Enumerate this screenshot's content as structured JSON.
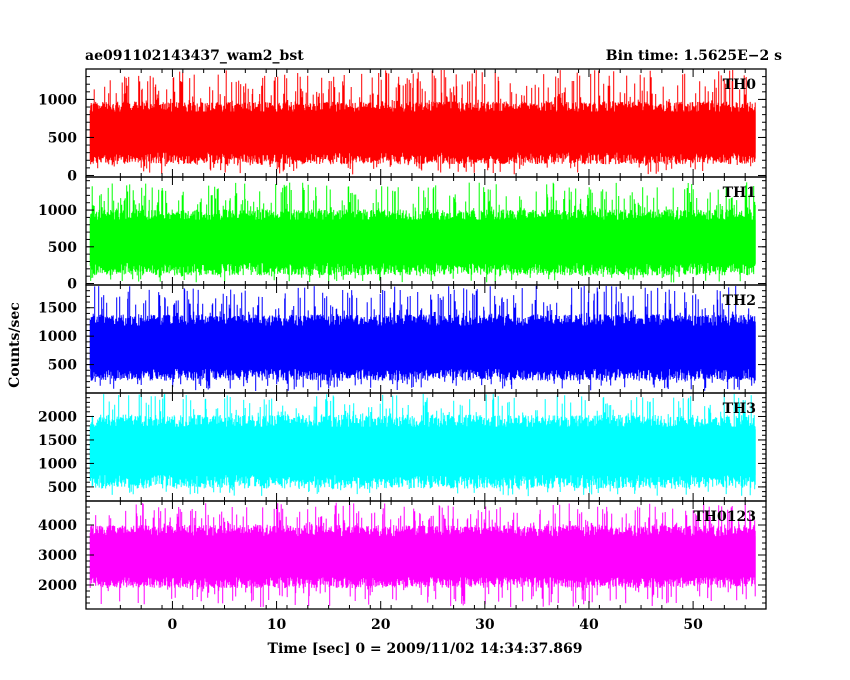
{
  "header": {
    "title": "ae091102143437_wam2_bst",
    "bin_time": "Bin time: 1.5625E−2 s"
  },
  "chart_data": {
    "type": "line",
    "title": "ae091102143437_wam2_bst",
    "xlabel": "Time [sec] 0 = 2009/11/02 14:34:37.869",
    "ylabel": "Counts/sec",
    "xlim": [
      -8.3,
      57.0
    ],
    "x_data_range": [
      -7.9,
      56.0
    ],
    "bin_time_s": 0.015625,
    "x_ticks": [
      0,
      10,
      20,
      30,
      40,
      50
    ],
    "grid": false,
    "legend": "none",
    "panels": [
      {
        "name": "TH0",
        "color": "#ff0000",
        "ylim": [
          -20,
          1400
        ],
        "y_ticks": [
          0,
          500,
          1000
        ],
        "level_mean": 560,
        "band_low": 300,
        "band_high": 850,
        "spike_min": 10,
        "spike_max": 1400
      },
      {
        "name": "TH1",
        "color": "#00ff00",
        "ylim": [
          -20,
          1450
        ],
        "y_ticks": [
          0,
          500,
          1000
        ],
        "level_mean": 560,
        "band_low": 280,
        "band_high": 880,
        "spike_min": 10,
        "spike_max": 1380
      },
      {
        "name": "TH2",
        "color": "#0000ff",
        "ylim": [
          0,
          1900
        ],
        "y_ticks": [
          500,
          1000,
          1500
        ],
        "level_mean": 800,
        "band_low": 420,
        "band_high": 1200,
        "spike_min": 30,
        "spike_max": 1900
      },
      {
        "name": "TH3",
        "color": "#00ffff",
        "ylim": [
          200,
          2500
        ],
        "y_ticks": [
          500,
          1000,
          1500,
          2000
        ],
        "level_mean": 1250,
        "band_low": 750,
        "band_high": 1800,
        "spike_min": 300,
        "spike_max": 2500
      },
      {
        "name": "TH0123",
        "color": "#ff00ff",
        "ylim": [
          1200,
          4800
        ],
        "y_ticks": [
          2000,
          3000,
          4000
        ],
        "level_mean": 2950,
        "band_low": 2250,
        "band_high": 3650,
        "spike_min": 1250,
        "spike_max": 4750
      }
    ]
  }
}
